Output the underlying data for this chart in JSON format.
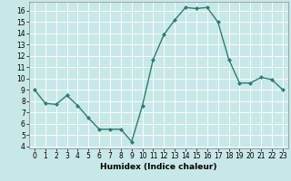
{
  "x": [
    0,
    1,
    2,
    3,
    4,
    5,
    6,
    7,
    8,
    9,
    10,
    11,
    12,
    13,
    14,
    15,
    16,
    17,
    18,
    19,
    20,
    21,
    22,
    23
  ],
  "y": [
    9.0,
    7.8,
    7.7,
    8.5,
    7.6,
    6.5,
    5.5,
    5.5,
    5.5,
    4.4,
    7.6,
    11.7,
    13.9,
    15.2,
    16.3,
    16.2,
    16.3,
    15.0,
    11.7,
    9.6,
    9.6,
    10.1,
    9.9,
    9.0
  ],
  "line_color": "#2d7d6e",
  "marker": "D",
  "marker_size": 2.0,
  "xlabel": "Humidex (Indice chaleur)",
  "xlim": [
    -0.5,
    23.5
  ],
  "ylim": [
    3.8,
    16.8
  ],
  "yticks": [
    4,
    5,
    6,
    7,
    8,
    9,
    10,
    11,
    12,
    13,
    14,
    15,
    16
  ],
  "xticks": [
    0,
    1,
    2,
    3,
    4,
    5,
    6,
    7,
    8,
    9,
    10,
    11,
    12,
    13,
    14,
    15,
    16,
    17,
    18,
    19,
    20,
    21,
    22,
    23
  ],
  "bg_color": "#c8e8e8",
  "plot_bg_color": "#c8e8e8",
  "grid_color": "#ffffff",
  "tick_labelsize": 5.5,
  "xlabel_fontsize": 6.5,
  "linewidth": 1.0
}
